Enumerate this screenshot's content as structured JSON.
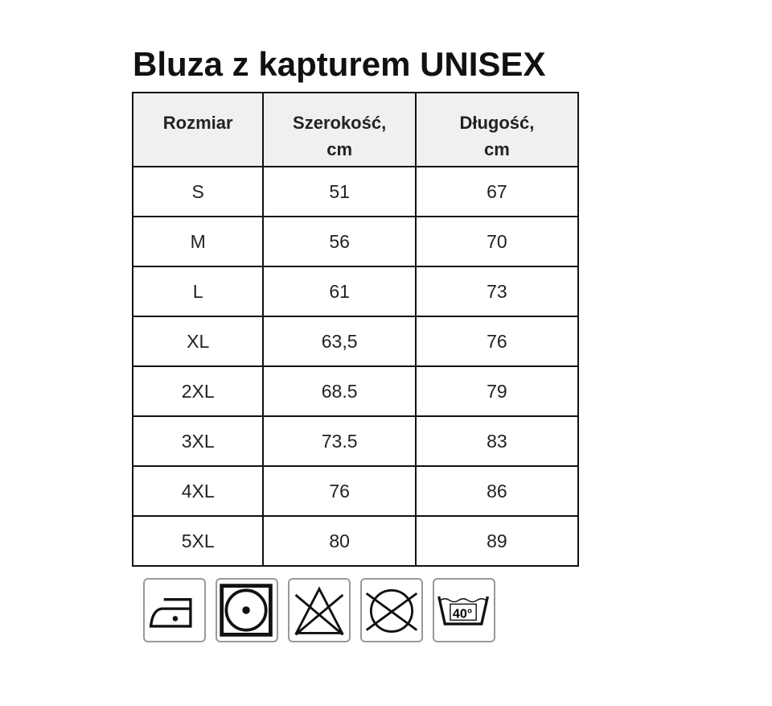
{
  "title": "Bluza z kapturem UNISEX",
  "table": {
    "headers": [
      "Rozmiar",
      "Szerokość,\ncm",
      "Długość,\ncm"
    ],
    "rows": [
      [
        "S",
        "51",
        "67"
      ],
      [
        "M",
        "56",
        "70"
      ],
      [
        "L",
        "61",
        "73"
      ],
      [
        "XL",
        "63,5",
        "76"
      ],
      [
        "2XL",
        "68.5",
        "79"
      ],
      [
        "3XL",
        "73.5",
        "83"
      ],
      [
        "4XL",
        "76",
        "86"
      ],
      [
        "5XL",
        "80",
        "89"
      ]
    ]
  },
  "care_icons": [
    "iron-low-icon",
    "tumble-dry-icon",
    "no-bleach-icon",
    "no-dry-clean-icon",
    "wash-40-icon"
  ],
  "wash_temp": "40°"
}
